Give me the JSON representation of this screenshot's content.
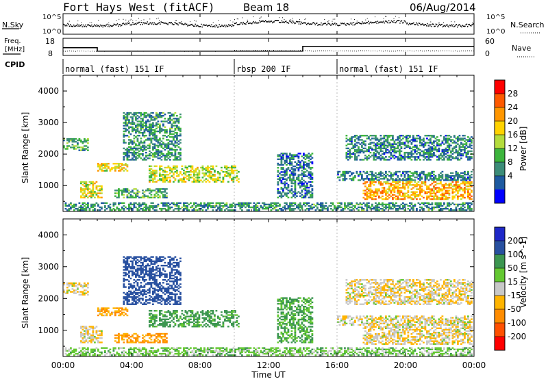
{
  "header": {
    "station": "Fort Hays West (fitACF)",
    "beam": "Beam 18",
    "date": "06/Aug/2014"
  },
  "top_panels": {
    "nsky_label": "N.Sky",
    "nsearch_label": "N.Search",
    "noise_ticks_left": [
      "10^5",
      "10^0"
    ],
    "noise_ticks_right": [
      "10^5",
      "10^0"
    ],
    "freq_label_1": "Freq.",
    "freq_label_2": "[MHz]",
    "freq_ticks": [
      "18",
      "8"
    ],
    "nave_label": "Nave",
    "nave_ticks": [
      "60",
      "0"
    ],
    "cpid_label": "CPID",
    "cpid_segments": [
      {
        "label": "normal (fast) 151 IF",
        "start_h": 0.0,
        "end_h": 10.0
      },
      {
        "label": "rbsp 200 IF",
        "start_h": 10.0,
        "end_h": 16.0
      },
      {
        "label": "normal (fast) 151 IF",
        "start_h": 16.0,
        "end_h": 24.0
      }
    ]
  },
  "power_colorbar": {
    "label": "Power [dB]",
    "ticks": [
      "28",
      "24",
      "20",
      "16",
      "12",
      "8",
      "4"
    ],
    "colors": [
      "#ff0000",
      "#ff5a00",
      "#ff9600",
      "#ffd200",
      "#b4dc3c",
      "#3cb43c",
      "#3c8c78",
      "#1e5aa0",
      "#0000ff"
    ]
  },
  "velocity_colorbar": {
    "label": "Velocity [m s^-1]",
    "ticks": [
      "200",
      "100",
      "50",
      "15",
      "-15",
      "-50",
      "-100",
      "-200"
    ],
    "colors": [
      "#1e28c8",
      "#2850a0",
      "#3c9650",
      "#64c832",
      "#c8c8c8",
      "#ffb400",
      "#ff8c00",
      "#ff5000",
      "#ff0000"
    ]
  },
  "chart_data": {
    "type": "heatmap",
    "xlabel": "Time UT",
    "ylabel": "Slant Range [km]",
    "x_ticks": [
      "00:00",
      "04:00",
      "08:00",
      "12:00",
      "16:00",
      "20:00",
      "00:00"
    ],
    "x_range_hours": [
      0,
      24
    ],
    "y_ticks": [
      1000,
      2000,
      3000,
      4000
    ],
    "y_range_km": [
      180,
      4500
    ],
    "panels": [
      "power",
      "velocity"
    ],
    "frequency_mhz": [
      {
        "start_h": 0.0,
        "end_h": 2.0,
        "value": 12.5
      },
      {
        "start_h": 2.0,
        "end_h": 14.0,
        "value": 10.5
      },
      {
        "start_h": 14.0,
        "end_h": 24.0,
        "value": 13.3
      }
    ],
    "nave": [
      {
        "start_h": 0.0,
        "end_h": 10.0,
        "value": 16
      },
      {
        "start_h": 10.0,
        "end_h": 14.0,
        "value": 18
      },
      {
        "start_h": 14.0,
        "end_h": 24.0,
        "value": 17
      }
    ],
    "echo_regions": [
      {
        "name": "near-range echoes",
        "t0": 0.1,
        "t1": 23.9,
        "r0": 200,
        "r1": 450,
        "dB": 10,
        "vel": 30
      },
      {
        "name": "early band",
        "t0": 0.0,
        "t1": 1.5,
        "r0": 2100,
        "r1": 2500,
        "dB": 12,
        "vel": -10
      },
      {
        "name": "early low band",
        "t0": 1.0,
        "t1": 2.3,
        "r0": 600,
        "r1": 1100,
        "dB": 18,
        "vel": -10
      },
      {
        "name": "band A",
        "t0": 2.0,
        "t1": 3.8,
        "r0": 1450,
        "r1": 1700,
        "dB": 19,
        "vel": -40
      },
      {
        "name": "band B",
        "t0": 3.0,
        "t1": 6.0,
        "r0": 600,
        "r1": 900,
        "dB": 12,
        "vel": -60
      },
      {
        "name": "aurora arc",
        "t0": 5.0,
        "t1": 10.2,
        "r0": 1100,
        "r1": 1600,
        "dB": 17,
        "vel": 70
      },
      {
        "name": "high ranges",
        "t0": 3.5,
        "t1": 6.8,
        "r0": 1800,
        "r1": 3300,
        "dB": 10,
        "vel": 170
      },
      {
        "name": "evening band",
        "t0": 17.5,
        "t1": 23.9,
        "r0": 550,
        "r1": 1100,
        "dB": 22,
        "vel": -10
      },
      {
        "name": "far band",
        "t0": 16.0,
        "t1": 23.9,
        "r0": 1150,
        "r1": 1450,
        "dB": 9,
        "vel": -5
      },
      {
        "name": "upper arc",
        "t0": 16.5,
        "t1": 23.9,
        "r0": 1800,
        "r1": 2600,
        "dB": 9,
        "vel": -10
      },
      {
        "name": "mid echoes",
        "t0": 12.5,
        "t1": 14.5,
        "r0": 600,
        "r1": 2000,
        "dB": 8,
        "vel": 60
      }
    ]
  }
}
